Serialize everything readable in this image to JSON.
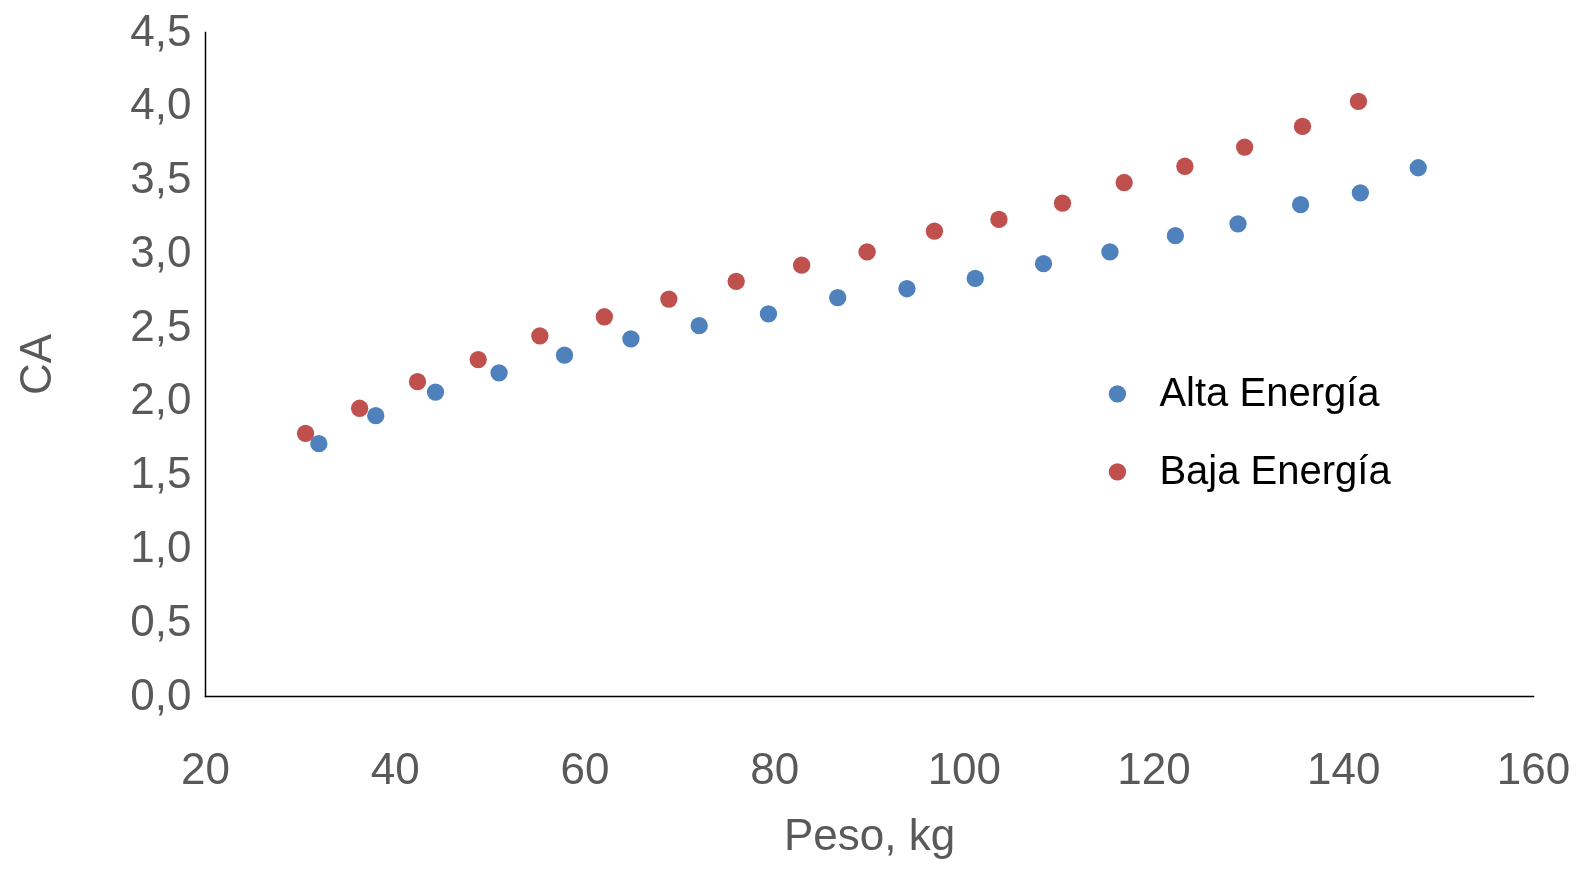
{
  "chart_data": {
    "type": "scatter",
    "xlabel": "Peso, kg",
    "ylabel": "CA",
    "xlim": [
      20,
      160
    ],
    "xticks": [
      20,
      40,
      60,
      80,
      100,
      120,
      140,
      160
    ],
    "ylim": [
      0,
      4.5
    ],
    "yticks": [
      {
        "value": 0,
        "label": "0,0"
      },
      {
        "value": 0.5,
        "label": "0,5"
      },
      {
        "value": 1,
        "label": "1,0"
      },
      {
        "value": 1.5,
        "label": "1,5"
      },
      {
        "value": 2,
        "label": "2,0"
      },
      {
        "value": 2.5,
        "label": "2,5"
      },
      {
        "value": 3,
        "label": "3,0"
      },
      {
        "value": 3.5,
        "label": "3,5"
      },
      {
        "value": 4,
        "label": "4,0"
      },
      {
        "value": 4.5,
        "label": "4,5"
      }
    ],
    "grid": false,
    "legend": "right",
    "marker": "circle",
    "series": [
      {
        "name": "Alta Energía",
        "color": "#4f81bd",
        "x": [
          32.0,
          38.0,
          44.3,
          51.0,
          57.9,
          64.9,
          72.1,
          79.4,
          86.7,
          94.0,
          101.2,
          108.4,
          115.4,
          122.3,
          128.9,
          135.5,
          141.8,
          147.9
        ],
        "values": [
          1.71,
          1.9,
          2.06,
          2.19,
          2.31,
          2.42,
          2.51,
          2.59,
          2.7,
          2.76,
          2.83,
          2.93,
          3.01,
          3.12,
          3.2,
          3.33,
          3.41,
          3.58
        ]
      },
      {
        "name": "Baja Energía",
        "color": "#c0504d",
        "x": [
          30.6,
          36.3,
          42.4,
          48.8,
          55.3,
          62.1,
          68.9,
          76.0,
          82.9,
          89.8,
          96.9,
          103.7,
          110.4,
          116.9,
          123.3,
          129.6,
          135.7,
          141.6
        ],
        "values": [
          1.78,
          1.95,
          2.13,
          2.28,
          2.44,
          2.57,
          2.69,
          2.81,
          2.92,
          3.01,
          3.15,
          3.23,
          3.34,
          3.48,
          3.59,
          3.72,
          3.86,
          4.03
        ]
      }
    ]
  }
}
